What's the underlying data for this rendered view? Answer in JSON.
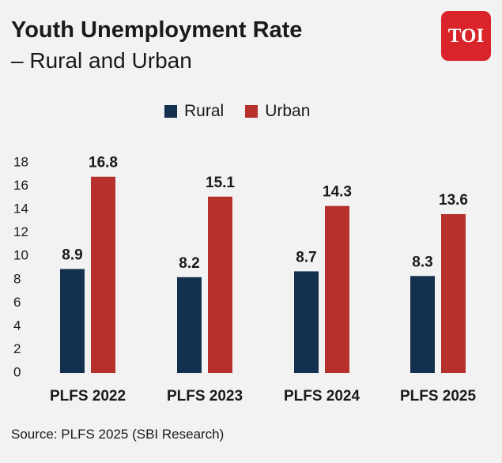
{
  "header": {
    "title": "Youth Unemployment Rate",
    "subtitle": "– Rural and Urban",
    "logo_text": "TOI"
  },
  "footer": {
    "source": "Source: PLFS 2025 (SBI Research)"
  },
  "colors": {
    "rural": "#14304f",
    "urban": "#b7312c",
    "logo_bg": "#d8242a",
    "background": "#f2f2f2"
  },
  "chart_data": {
    "type": "bar",
    "title": "Youth Unemployment Rate",
    "subtitle": "– Rural and Urban",
    "xlabel": "",
    "ylabel": "",
    "categories": [
      "PLFS 2022",
      "PLFS 2023",
      "PLFS 2024",
      "PLFS 2025"
    ],
    "series": [
      {
        "name": "Rural",
        "values": [
          8.9,
          8.2,
          8.7,
          8.3
        ],
        "labels": [
          "8.9",
          "8.2",
          "8.7",
          "8.3"
        ]
      },
      {
        "name": "Urban",
        "values": [
          16.8,
          15.1,
          14.3,
          13.6
        ],
        "labels": [
          "16.8",
          "15.1",
          "14.3",
          "13.6"
        ]
      }
    ],
    "ylim": [
      0,
      18
    ],
    "yticks": [
      "0",
      "2",
      "4",
      "6",
      "8",
      "10",
      "12",
      "14",
      "16",
      "18"
    ],
    "grid": false,
    "legend_position": "top-center",
    "data_labels": true
  }
}
